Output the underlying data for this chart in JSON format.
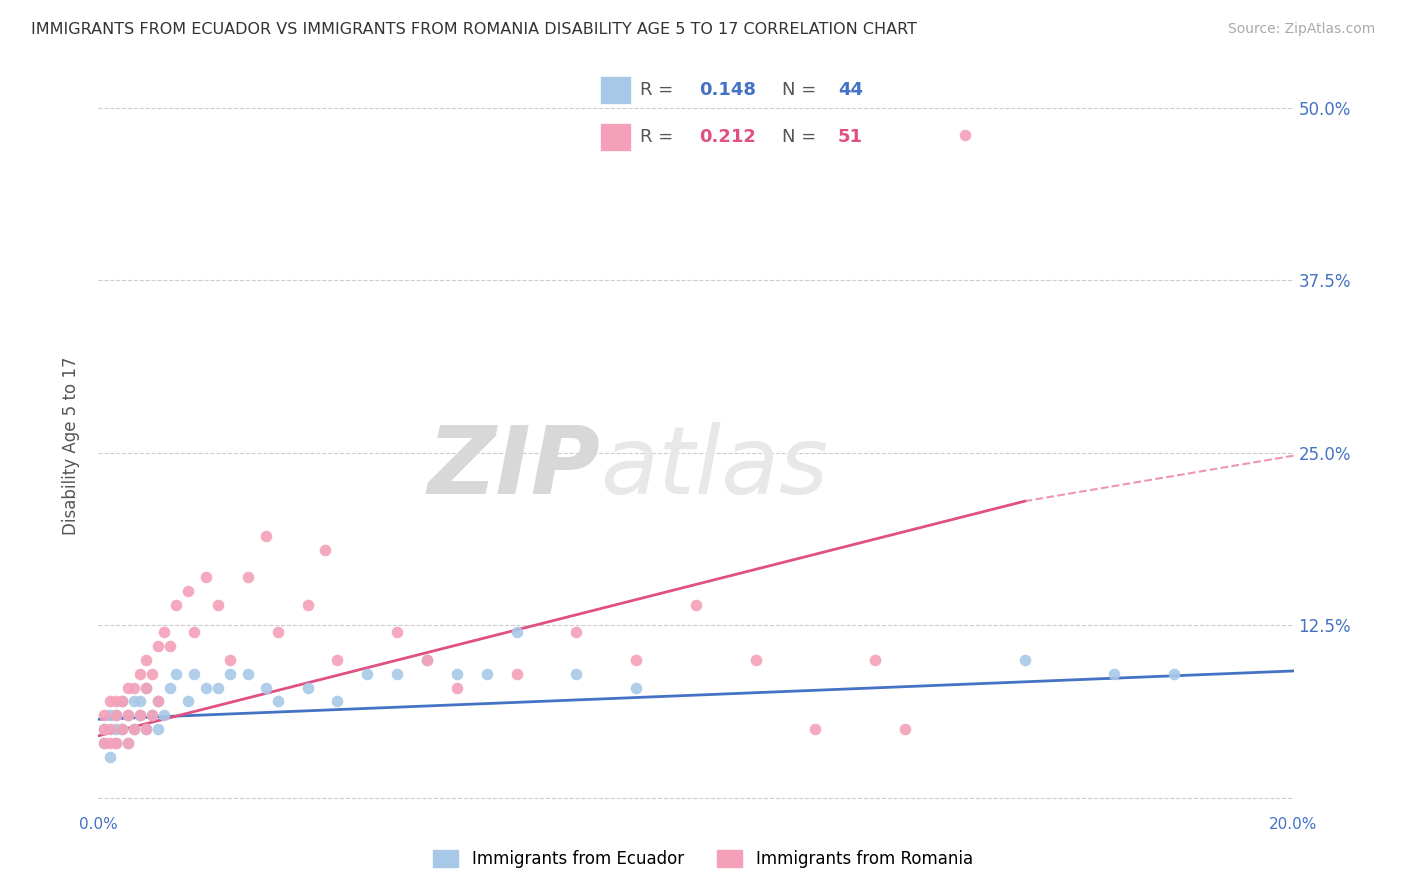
{
  "title": "IMMIGRANTS FROM ECUADOR VS IMMIGRANTS FROM ROMANIA DISABILITY AGE 5 TO 17 CORRELATION CHART",
  "source": "Source: ZipAtlas.com",
  "ylabel": "Disability Age 5 to 17",
  "xlim": [
    0.0,
    0.2
  ],
  "ylim": [
    -0.01,
    0.52
  ],
  "yticks": [
    0.0,
    0.125,
    0.25,
    0.375,
    0.5
  ],
  "ytick_labels": [
    "",
    "12.5%",
    "25.0%",
    "37.5%",
    "50.0%"
  ],
  "xticks": [
    0.0,
    0.05,
    0.1,
    0.15,
    0.2
  ],
  "xtick_labels": [
    "0.0%",
    "",
    "",
    "",
    "20.0%"
  ],
  "ecuador_color": "#a8c8e8",
  "romania_color": "#f4a0b8",
  "ecuador_line_color": "#4472c4",
  "romania_line_color": "#e05080",
  "R_ecuador": 0.148,
  "N_ecuador": 44,
  "R_romania": 0.212,
  "N_romania": 51,
  "watermark_zip": "ZIP",
  "watermark_atlas": "atlas",
  "ecuador_scatter_x": [
    0.001,
    0.001,
    0.002,
    0.002,
    0.003,
    0.003,
    0.003,
    0.004,
    0.004,
    0.005,
    0.005,
    0.006,
    0.006,
    0.007,
    0.007,
    0.008,
    0.008,
    0.009,
    0.01,
    0.01,
    0.011,
    0.012,
    0.013,
    0.015,
    0.016,
    0.018,
    0.02,
    0.022,
    0.025,
    0.028,
    0.03,
    0.035,
    0.04,
    0.045,
    0.05,
    0.055,
    0.06,
    0.065,
    0.07,
    0.08,
    0.09,
    0.155,
    0.17,
    0.18
  ],
  "ecuador_scatter_y": [
    0.04,
    0.05,
    0.03,
    0.06,
    0.04,
    0.05,
    0.06,
    0.05,
    0.07,
    0.04,
    0.06,
    0.05,
    0.07,
    0.06,
    0.07,
    0.05,
    0.08,
    0.06,
    0.05,
    0.07,
    0.06,
    0.08,
    0.09,
    0.07,
    0.09,
    0.08,
    0.08,
    0.09,
    0.09,
    0.08,
    0.07,
    0.08,
    0.07,
    0.09,
    0.09,
    0.1,
    0.09,
    0.09,
    0.12,
    0.09,
    0.08,
    0.1,
    0.09,
    0.09
  ],
  "romania_scatter_x": [
    0.001,
    0.001,
    0.001,
    0.002,
    0.002,
    0.002,
    0.003,
    0.003,
    0.003,
    0.004,
    0.004,
    0.005,
    0.005,
    0.005,
    0.006,
    0.006,
    0.007,
    0.007,
    0.008,
    0.008,
    0.008,
    0.009,
    0.009,
    0.01,
    0.01,
    0.011,
    0.012,
    0.013,
    0.015,
    0.016,
    0.018,
    0.02,
    0.022,
    0.025,
    0.03,
    0.035,
    0.038,
    0.04,
    0.05,
    0.055,
    0.06,
    0.07,
    0.08,
    0.09,
    0.1,
    0.11,
    0.12,
    0.13,
    0.135,
    0.145,
    0.028
  ],
  "romania_scatter_y": [
    0.04,
    0.05,
    0.06,
    0.04,
    0.05,
    0.07,
    0.04,
    0.06,
    0.07,
    0.05,
    0.07,
    0.04,
    0.06,
    0.08,
    0.05,
    0.08,
    0.06,
    0.09,
    0.05,
    0.08,
    0.1,
    0.06,
    0.09,
    0.07,
    0.11,
    0.12,
    0.11,
    0.14,
    0.15,
    0.12,
    0.16,
    0.14,
    0.1,
    0.16,
    0.12,
    0.14,
    0.18,
    0.1,
    0.12,
    0.1,
    0.08,
    0.09,
    0.12,
    0.1,
    0.14,
    0.1,
    0.05,
    0.1,
    0.05,
    0.48,
    0.19
  ],
  "ecuador_trend_x": [
    0.0,
    0.2
  ],
  "ecuador_trend_y": [
    0.057,
    0.092
  ],
  "romania_trend_x": [
    0.0,
    0.155
  ],
  "romania_trend_y": [
    0.045,
    0.215
  ]
}
